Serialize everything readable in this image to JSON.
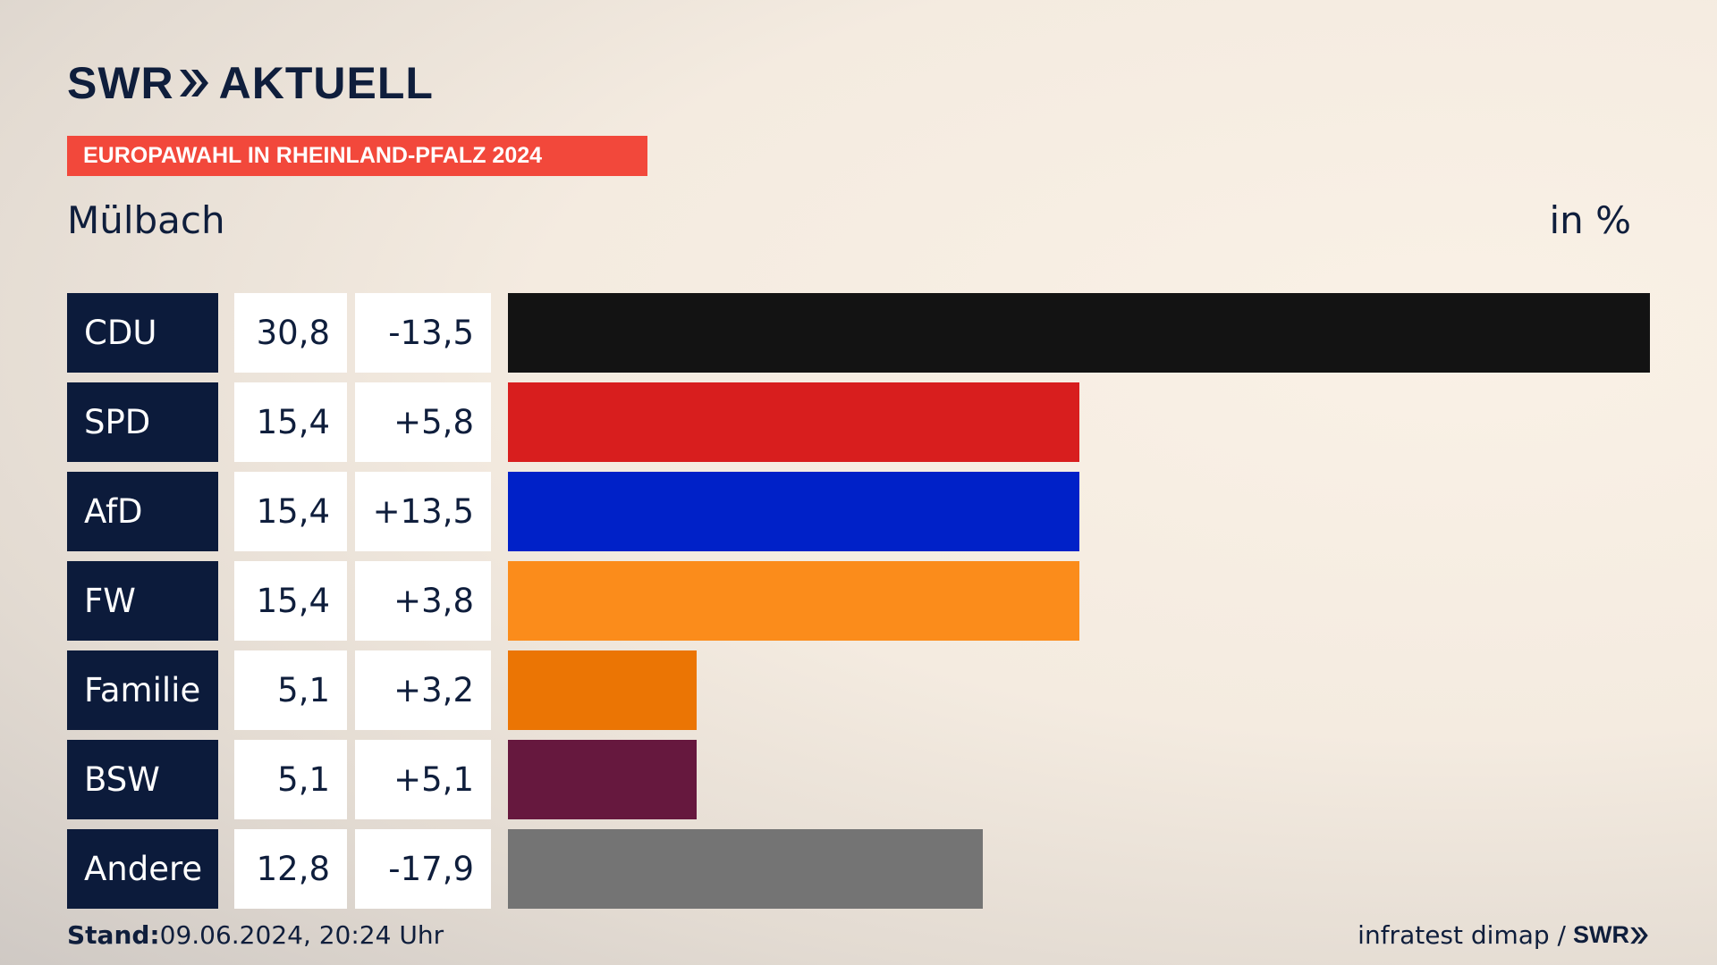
{
  "header": {
    "logo_text": "SWR",
    "logo_suffix": "AKTUELL",
    "banner": "EUROPAWAHL IN RHEINLAND-PFALZ 2024",
    "region": "Mülbach",
    "unit": "in %"
  },
  "chart_data": {
    "type": "bar",
    "orientation": "horizontal",
    "title": "EUROPAWAHL IN RHEINLAND-PFALZ 2024",
    "subtitle": "Mülbach",
    "unit": "in %",
    "xlim": [
      0,
      30.8
    ],
    "rows": [
      {
        "party": "CDU",
        "value": "30,8",
        "diff": "-13,5",
        "num": 30.8,
        "color": "#131313"
      },
      {
        "party": "SPD",
        "value": "15,4",
        "diff": "+5,8",
        "num": 15.4,
        "color": "#d81e1e"
      },
      {
        "party": "AfD",
        "value": "15,4",
        "diff": "+13,5",
        "num": 15.4,
        "color": "#0021c8"
      },
      {
        "party": "FW",
        "value": "15,4",
        "diff": "+3,8",
        "num": 15.4,
        "color": "#fb8c1b"
      },
      {
        "party": "Familie",
        "value": "5,1",
        "diff": "+3,2",
        "num": 5.1,
        "color": "#eb7504"
      },
      {
        "party": "BSW",
        "value": "5,1",
        "diff": "+5,1",
        "num": 5.1,
        "color": "#66183e"
      },
      {
        "party": "Andere",
        "value": "12,8",
        "diff": "-17,9",
        "num": 12.8,
        "color": "#747474"
      }
    ]
  },
  "footer": {
    "stand_label": "Stand:",
    "stand_value": "09.06.2024, 20:24 Uhr",
    "source": "infratest dimap /",
    "source_logo": "SWR"
  }
}
